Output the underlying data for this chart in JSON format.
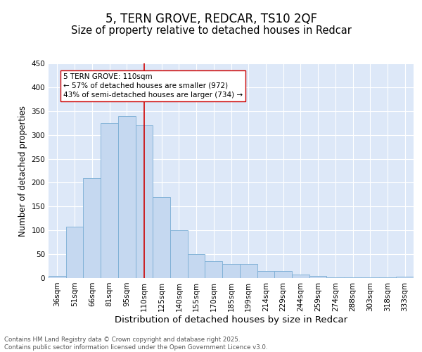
{
  "title_line1": "5, TERN GROVE, REDCAR, TS10 2QF",
  "title_line2": "Size of property relative to detached houses in Redcar",
  "xlabel": "Distribution of detached houses by size in Redcar",
  "ylabel": "Number of detached properties",
  "categories": [
    "36sqm",
    "51sqm",
    "66sqm",
    "81sqm",
    "95sqm",
    "110sqm",
    "125sqm",
    "140sqm",
    "155sqm",
    "170sqm",
    "185sqm",
    "199sqm",
    "214sqm",
    "229sqm",
    "244sqm",
    "259sqm",
    "274sqm",
    "288sqm",
    "303sqm",
    "318sqm",
    "333sqm"
  ],
  "values": [
    5,
    107,
    210,
    325,
    340,
    320,
    170,
    100,
    50,
    35,
    30,
    30,
    15,
    15,
    8,
    5,
    1,
    1,
    1,
    1,
    3
  ],
  "bar_color": "#c5d8f0",
  "bar_edge_color": "#7aadd4",
  "vline_x_index": 5,
  "vline_color": "#cc0000",
  "annotation_text": "5 TERN GROVE: 110sqm\n← 57% of detached houses are smaller (972)\n43% of semi-detached houses are larger (734) →",
  "annotation_box_facecolor": "#ffffff",
  "annotation_box_edgecolor": "#cc0000",
  "ylim": [
    0,
    450
  ],
  "yticks": [
    0,
    50,
    100,
    150,
    200,
    250,
    300,
    350,
    400,
    450
  ],
  "background_color": "#dde8f8",
  "grid_color": "#ffffff",
  "footer_text": "Contains HM Land Registry data © Crown copyright and database right 2025.\nContains public sector information licensed under the Open Government Licence v3.0.",
  "title_fontsize": 12,
  "subtitle_fontsize": 10.5,
  "tick_fontsize": 7.5,
  "xlabel_fontsize": 9.5,
  "ylabel_fontsize": 8.5,
  "annotation_fontsize": 7.5
}
